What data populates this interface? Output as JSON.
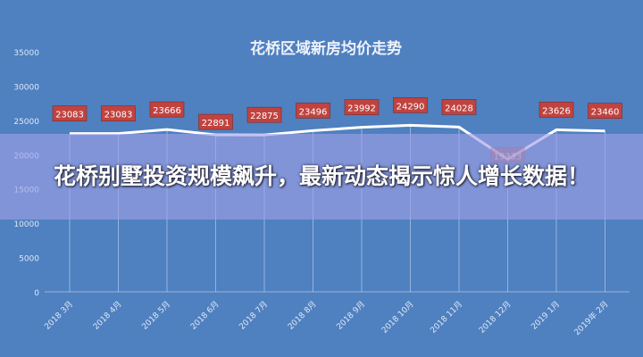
{
  "chart_data": {
    "type": "line",
    "title": "花桥区域新房均价走势",
    "categories": [
      "2018 3月",
      "2018 4月",
      "2018 5月",
      "2018 6月",
      "2018 7月",
      "2018 8月",
      "2018 9月",
      "2018 10月",
      "2018 11月",
      "2018 12月",
      "2019 1月",
      "2019年 2月"
    ],
    "values": [
      23083,
      23083,
      23666,
      22891,
      22875,
      23496,
      23992,
      24290,
      24028,
      19333,
      23626,
      23460
    ],
    "ylim": [
      0,
      35000
    ],
    "yticks": [
      "0",
      "5000",
      "10000",
      "15000",
      "20000",
      "25000",
      "30000",
      "35000"
    ],
    "grid": false,
    "colors": {
      "background": "#4f80c0",
      "line": "#ffffff",
      "label_box": "#c0433f"
    }
  },
  "banner": {
    "headline": "花桥别墅投资规模飙升，最新动态揭示惊人增长数据！"
  }
}
